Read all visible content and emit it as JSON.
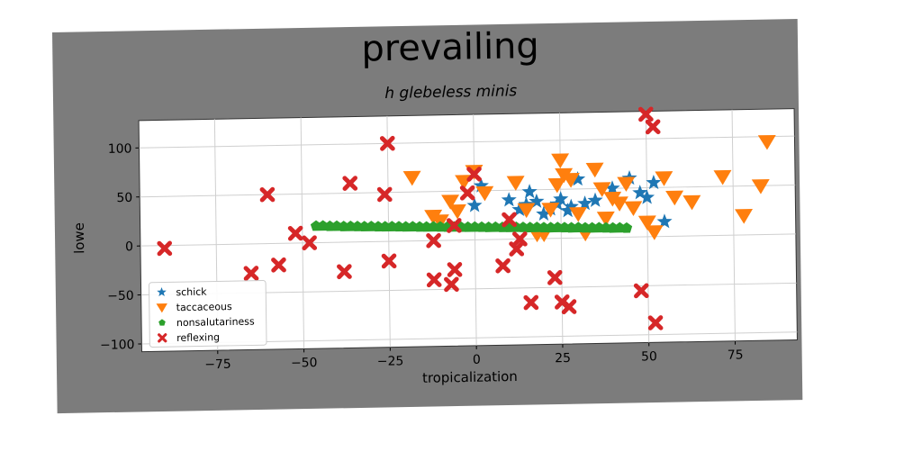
{
  "chart_data": {
    "type": "scatter",
    "title": "prevailing",
    "subtitle": "h glebeless minis",
    "xlabel": "tropicalization",
    "ylabel": "lowe",
    "xlim": [
      -97,
      93
    ],
    "ylim": [
      -108,
      128
    ],
    "xticks": [
      -75,
      -50,
      -25,
      0,
      25,
      50,
      75
    ],
    "yticks": [
      -100,
      -50,
      0,
      50,
      100
    ],
    "grid": true,
    "legend_position": "bottom-left",
    "colors": {
      "frame": "#7c7c7c",
      "plot_bg": "#ffffff",
      "grid": "#cfcfcf"
    },
    "series": [
      {
        "name": "schick",
        "marker": "star",
        "color": "#1f77b4",
        "x": [
          0,
          2,
          10,
          13,
          15,
          16,
          18,
          20,
          22,
          24,
          25,
          27,
          28,
          30,
          32,
          35,
          40,
          45,
          48,
          50,
          52,
          55
        ],
        "y": [
          35,
          55,
          40,
          30,
          35,
          48,
          38,
          25,
          30,
          35,
          40,
          28,
          32,
          60,
          35,
          38,
          50,
          60,
          45,
          40,
          55,
          15
        ]
      },
      {
        "name": "taccaceous",
        "marker": "triangle-down",
        "color": "#ff7f0e",
        "x": [
          -18,
          -12,
          -10,
          -7,
          -5,
          -3,
          0,
          3,
          12,
          15,
          18,
          20,
          22,
          24,
          25,
          26,
          28,
          30,
          32,
          35,
          37,
          38,
          40,
          42,
          44,
          46,
          50,
          52,
          55,
          58,
          63,
          72,
          78,
          83,
          85
        ],
        "y": [
          65,
          25,
          20,
          40,
          30,
          60,
          70,
          48,
          58,
          30,
          5,
          5,
          30,
          55,
          80,
          65,
          60,
          25,
          5,
          70,
          50,
          20,
          40,
          35,
          55,
          30,
          15,
          5,
          60,
          40,
          35,
          60,
          20,
          50,
          95
        ]
      },
      {
        "name": "nonsalutariness",
        "marker": "pentagon",
        "color": "#2ca02c",
        "x": [
          -46,
          -44,
          -42,
          -40,
          -38,
          -36,
          -34,
          -32,
          -30,
          -28,
          -26,
          -24,
          -22,
          -20,
          -18,
          -16,
          -14,
          -12,
          -10,
          -8,
          -6,
          -4,
          -2,
          0,
          2,
          4,
          6,
          8,
          10,
          12,
          14,
          16,
          18,
          20,
          22,
          24,
          26,
          28,
          30,
          32,
          34,
          36,
          38,
          40,
          42,
          44
        ],
        "y": [
          17,
          17,
          16.5,
          16.5,
          16,
          16,
          15.8,
          15.5,
          15.5,
          15.2,
          15,
          15,
          14.8,
          14.5,
          14.5,
          14.2,
          14,
          14,
          13.8,
          13.5,
          13.5,
          13.2,
          13,
          13,
          12.8,
          12.5,
          12.5,
          12.2,
          12,
          12,
          11.8,
          11.5,
          11.5,
          11.2,
          11,
          11,
          10.8,
          10.5,
          10.5,
          10.2,
          10,
          10,
          9.8,
          9.5,
          9.5,
          9.2
        ]
      },
      {
        "name": "reflexing",
        "marker": "x",
        "color": "#d62728",
        "x": [
          -90,
          -65,
          -60,
          -57,
          -52,
          -48,
          -38,
          -36,
          -25,
          -26,
          -25,
          -12,
          -12,
          -6,
          -6,
          -7,
          -2,
          0,
          8,
          10,
          13,
          12,
          16,
          23,
          25,
          27,
          50,
          48,
          52,
          52
        ],
        "y": [
          -3,
          -30,
          50,
          -22,
          10,
          0,
          -30,
          60,
          100,
          48,
          -20,
          -40,
          0,
          15,
          -30,
          -45,
          48,
          67,
          -27,
          20,
          0,
          -10,
          -65,
          -40,
          -65,
          -70,
          125,
          -55,
          -88,
          112
        ]
      }
    ]
  }
}
